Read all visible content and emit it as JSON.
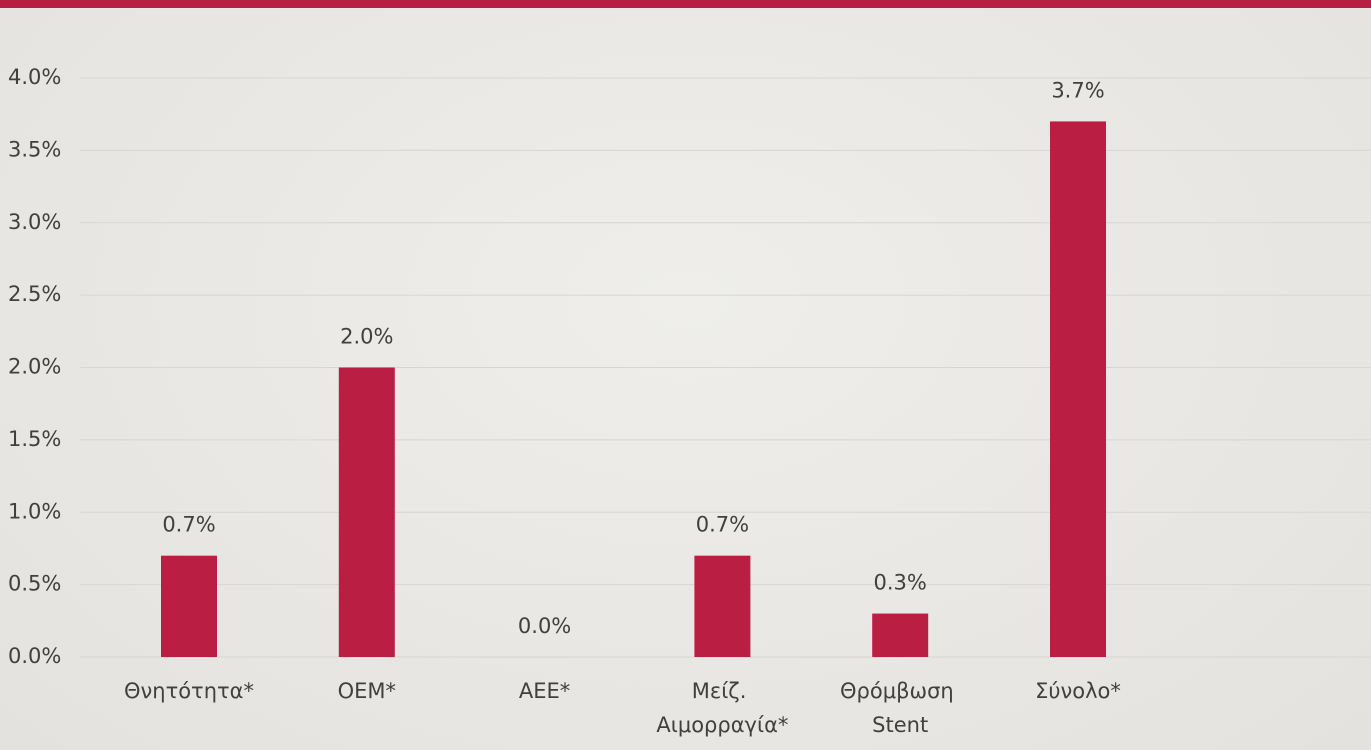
{
  "chart_data": {
    "type": "bar",
    "categories": [
      "Θνητότητα*",
      "ΟΕΜ*",
      "ΑΕΕ*",
      "Μείζ. Αιμορραγία*",
      "Θρόμβωση Stent",
      "Σύνολο*"
    ],
    "values": [
      0.7,
      2.0,
      0.0,
      0.7,
      0.3,
      3.7
    ],
    "value_labels": [
      "0.7%",
      "2.0%",
      "0.0%",
      "0.7%",
      "0.3%",
      "3.7%"
    ],
    "color": "#bb1e43",
    "ylim": [
      0,
      4
    ],
    "yticks": [
      {
        "value": 0,
        "label": "0.0%"
      },
      {
        "value": 0.5,
        "label": "0.5%"
      },
      {
        "value": 1,
        "label": "1.0%"
      },
      {
        "value": 1.5,
        "label": "1.5%"
      },
      {
        "value": 2,
        "label": "2.0%"
      },
      {
        "value": 2.5,
        "label": "2.5%"
      },
      {
        "value": 3,
        "label": "3.0%"
      },
      {
        "value": 3.5,
        "label": "3.5%"
      },
      {
        "value": 4,
        "label": "4.0%"
      }
    ],
    "grid": true
  }
}
